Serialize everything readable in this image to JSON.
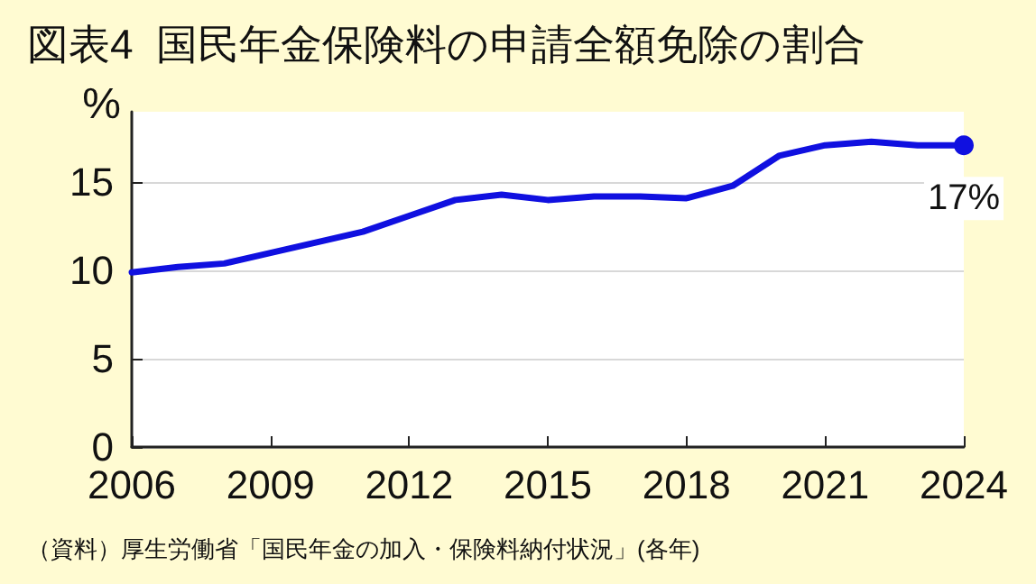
{
  "chart_data": {
    "type": "line",
    "title": "図表4  国民年金保険料の申請全額免除の割合",
    "ylabel": "%",
    "x": [
      2006,
      2007,
      2008,
      2009,
      2010,
      2011,
      2012,
      2013,
      2014,
      2015,
      2016,
      2017,
      2018,
      2019,
      2020,
      2021,
      2022,
      2023,
      2024
    ],
    "series": [
      {
        "color": "#1010e0",
        "values": [
          9.9,
          10.2,
          10.4,
          11.0,
          11.6,
          12.2,
          13.1,
          14.0,
          14.3,
          14.0,
          14.2,
          14.2,
          14.1,
          14.8,
          16.5,
          17.1,
          17.3,
          17.1,
          17.1
        ],
        "value_labels": [
          null,
          null,
          null,
          null,
          null,
          null,
          null,
          null,
          null,
          null,
          null,
          null,
          null,
          null,
          null,
          null,
          null,
          null,
          "17%"
        ]
      }
    ],
    "xlim": [
      2006,
      2024
    ],
    "xticks": [
      2006,
      2009,
      2012,
      2015,
      2018,
      2021,
      2024
    ],
    "ylim": [
      0,
      19
    ],
    "yticks": [
      0,
      5,
      10,
      15
    ],
    "grid": "y",
    "line_style": "solid",
    "annotations": [
      "（資料）厚生労働省「国民年金の加入・保険料納付状況」(各年)"
    ]
  }
}
